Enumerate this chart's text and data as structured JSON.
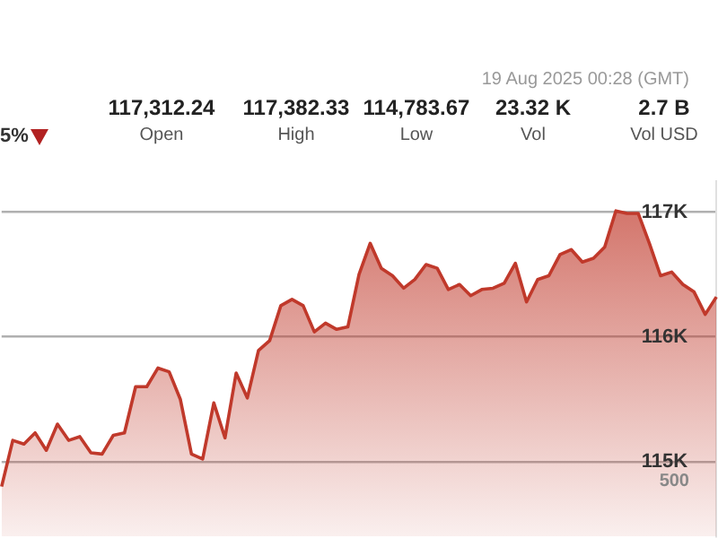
{
  "chart_data": {
    "type": "area",
    "categories": [
      null,
      null,
      null,
      null,
      null,
      null,
      null,
      null,
      null,
      null,
      null,
      null,
      null,
      null,
      null,
      null,
      null,
      null,
      null,
      null,
      null,
      null,
      null,
      null,
      null,
      null,
      null,
      null,
      null,
      null,
      null,
      null,
      null,
      null,
      null,
      null,
      null,
      null,
      null,
      null,
      null,
      null,
      null,
      null,
      null,
      null,
      null,
      null,
      null,
      null,
      null,
      null,
      null,
      null,
      null,
      null,
      null,
      null,
      null,
      null,
      null,
      null,
      null,
      null,
      null
    ],
    "series": [
      {
        "color": "#c0392b",
        "values": [
          114800,
          115170,
          115140,
          115230,
          115090,
          115300,
          115170,
          115200,
          115070,
          115060,
          115210,
          115230,
          115600,
          115600,
          115750,
          115720,
          115500,
          115060,
          115020,
          115470,
          115190,
          115710,
          115510,
          115890,
          115970,
          116250,
          116300,
          116250,
          116040,
          116110,
          116060,
          116080,
          116500,
          116750,
          116550,
          116490,
          116390,
          116460,
          116580,
          116550,
          116380,
          116420,
          116330,
          116380,
          116390,
          116430,
          116590,
          116280,
          116460,
          116490,
          116660,
          116700,
          116600,
          116630,
          116720,
          117010,
          116990,
          116990,
          116750,
          116490,
          116520,
          116420,
          116360,
          116180,
          116320
        ]
      }
    ],
    "ylim": [
      114400,
      117250
    ],
    "yticks": [
      {
        "value": 115000,
        "label": "115K"
      },
      {
        "value": 116000,
        "label": "116K"
      },
      {
        "value": 117000,
        "label": "117K"
      }
    ],
    "grid": "y",
    "legend": false,
    "tick_labels": "y",
    "marker": "none",
    "line_style": "solid",
    "annotations": [
      "19 Aug 2025 00:28 (GMT)",
      "5%",
      "117,312.24",
      "Open",
      "117,382.33",
      "High",
      "114,783.67",
      "Low",
      "23.32 K",
      "Vol",
      "2.7 B",
      "Vol USD",
      "500"
    ]
  }
}
